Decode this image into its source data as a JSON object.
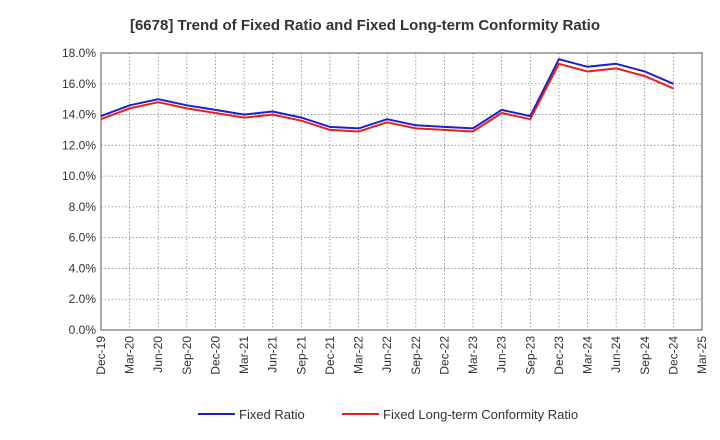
{
  "chart_data": {
    "type": "line",
    "title": "[6678]  Trend of Fixed Ratio and Fixed Long-term Conformity Ratio",
    "xlabel": "",
    "ylabel": "",
    "ylim": [
      0,
      18
    ],
    "y_ticks": [
      "0.0%",
      "2.0%",
      "4.0%",
      "6.0%",
      "8.0%",
      "10.0%",
      "12.0%",
      "14.0%",
      "16.0%",
      "18.0%"
    ],
    "categories": [
      "Dec-19",
      "Mar-20",
      "Jun-20",
      "Sep-20",
      "Dec-20",
      "Mar-21",
      "Jun-21",
      "Sep-21",
      "Dec-21",
      "Mar-22",
      "Jun-22",
      "Sep-22",
      "Dec-22",
      "Mar-23",
      "Jun-23",
      "Sep-23",
      "Dec-23",
      "Mar-24",
      "Jun-24",
      "Sep-24",
      "Dec-24",
      "Mar-25"
    ],
    "x_ticks": [
      "Dec-19",
      "Mar-20",
      "Jun-20",
      "Sep-20",
      "Dec-20",
      "Mar-21",
      "Jun-21",
      "Sep-21",
      "Dec-21",
      "Mar-22",
      "Jun-22",
      "Sep-22",
      "Dec-22",
      "Mar-23",
      "Jun-23",
      "Sep-23",
      "Dec-23",
      "Mar-24",
      "Jun-24",
      "Sep-24",
      "Dec-24",
      "Mar-25"
    ],
    "grid": true,
    "legend_position": "bottom",
    "series": [
      {
        "name": "Fixed Ratio",
        "color": "#1f1fcc",
        "values": [
          13.9,
          14.6,
          15.0,
          14.6,
          14.3,
          14.0,
          14.2,
          13.8,
          13.2,
          13.1,
          13.7,
          13.3,
          13.2,
          13.1,
          14.3,
          13.9,
          17.6,
          17.1,
          17.3,
          16.8,
          16.0,
          null
        ]
      },
      {
        "name": "Fixed Long-term Conformity Ratio",
        "color": "#e8201c",
        "values": [
          13.7,
          14.4,
          14.8,
          14.4,
          14.1,
          13.8,
          14.0,
          13.6,
          13.0,
          12.9,
          13.5,
          13.1,
          13.0,
          12.9,
          14.1,
          13.7,
          17.3,
          16.8,
          17.0,
          16.5,
          15.7,
          null
        ]
      }
    ]
  }
}
